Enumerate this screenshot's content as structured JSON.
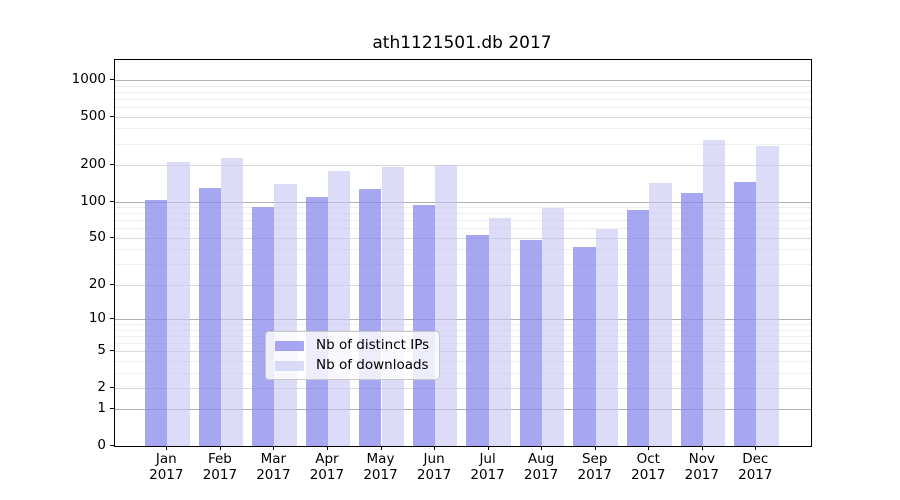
{
  "chart_data": {
    "type": "bar",
    "title": "ath1121501.db 2017",
    "categories": [
      "Jan",
      "Feb",
      "Mar",
      "Apr",
      "May",
      "Jun",
      "Jul",
      "Aug",
      "Sep",
      "Oct",
      "Nov",
      "Dec"
    ],
    "category_year": "2017",
    "series": [
      {
        "name": "Nb of distinct IPs",
        "color": "rgba(138,138,237,0.76)",
        "values": [
          103,
          130,
          90,
          108,
          128,
          94,
          53,
          48,
          42,
          85,
          118,
          144
        ]
      },
      {
        "name": "Nb of downloads",
        "color": "rgba(198,198,244,0.62)",
        "values": [
          210,
          230,
          140,
          179,
          193,
          202,
          73,
          89,
          59,
          143,
          320,
          288
        ]
      }
    ],
    "y_axis": {
      "scale": "log10(1+y)",
      "tick_labels": [
        0,
        1,
        2,
        5,
        10,
        20,
        50,
        100,
        200,
        500,
        1000
      ],
      "minor_gridlines": [
        3,
        4,
        6,
        7,
        8,
        9,
        30,
        40,
        60,
        70,
        80,
        90,
        300,
        400,
        600,
        700,
        800,
        900
      ]
    },
    "legend_entries": [
      "Nb of distinct IPs",
      "Nb of downloads"
    ],
    "grid": true,
    "colors": {
      "grid_major": "#b0b0b0",
      "grid_medium": "#d9d9d9",
      "grid_minor": "#efefef",
      "spine": "#000000"
    }
  }
}
